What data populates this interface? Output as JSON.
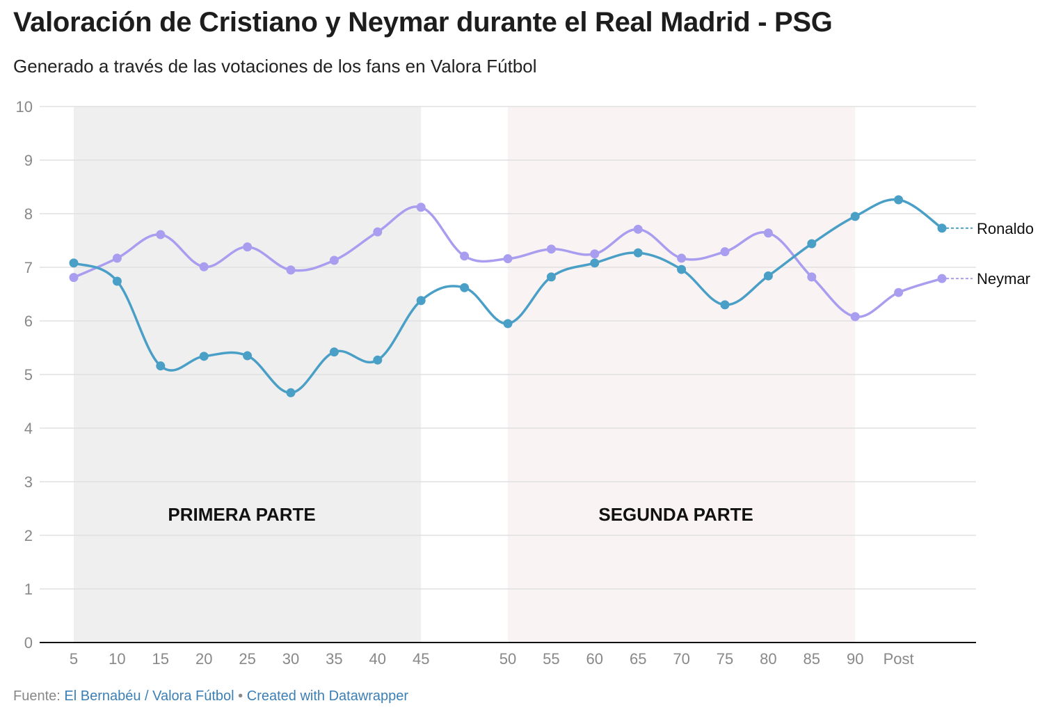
{
  "chart_data": {
    "type": "line",
    "title": "Valoración de Cristiano y Neymar durante el Real Madrid - PSG",
    "subtitle": "Generado a través de las votaciones de los fans en Valora Fútbol",
    "categories": [
      "5",
      "10",
      "15",
      "20",
      "25",
      "30",
      "35",
      "40",
      "45",
      "",
      "50",
      "55",
      "60",
      "65",
      "70",
      "75",
      "80",
      "85",
      "90",
      "Post",
      ""
    ],
    "ylim": [
      0,
      10
    ],
    "yticks": [
      "0",
      "1",
      "2",
      "3",
      "4",
      "5",
      "6",
      "7",
      "8",
      "9",
      "10"
    ],
    "grid": true,
    "legend": "direct labels at line ends (right)",
    "series": [
      {
        "name": "Ronaldo",
        "color": "#4a9fc6",
        "values": [
          7.08,
          6.74,
          5.16,
          5.34,
          5.35,
          4.66,
          5.42,
          5.27,
          6.38,
          6.62,
          5.95,
          6.82,
          7.08,
          7.27,
          6.96,
          6.3,
          6.84,
          7.44,
          7.95,
          8.26,
          7.73
        ]
      },
      {
        "name": "Neymar",
        "color": "#a99df0",
        "values": [
          6.81,
          7.17,
          7.61,
          7.01,
          7.38,
          6.95,
          7.13,
          7.66,
          8.12,
          7.21,
          7.16,
          7.34,
          7.25,
          7.71,
          7.17,
          7.29,
          7.64,
          6.82,
          6.08,
          6.53,
          6.79
        ]
      }
    ],
    "annotations": [
      {
        "text": "PRIMERA PARTE",
        "from": "5",
        "to": "45",
        "color": "#efefef"
      },
      {
        "text": "SEGUNDA PARTE",
        "from": "50",
        "to": "90",
        "color": "#faf3f3"
      }
    ]
  },
  "footer": {
    "source_label": "Fuente:",
    "source": "El Bernabéu / Valora Fútbol",
    "separator": "•",
    "credit": "Created with Datawrapper"
  }
}
